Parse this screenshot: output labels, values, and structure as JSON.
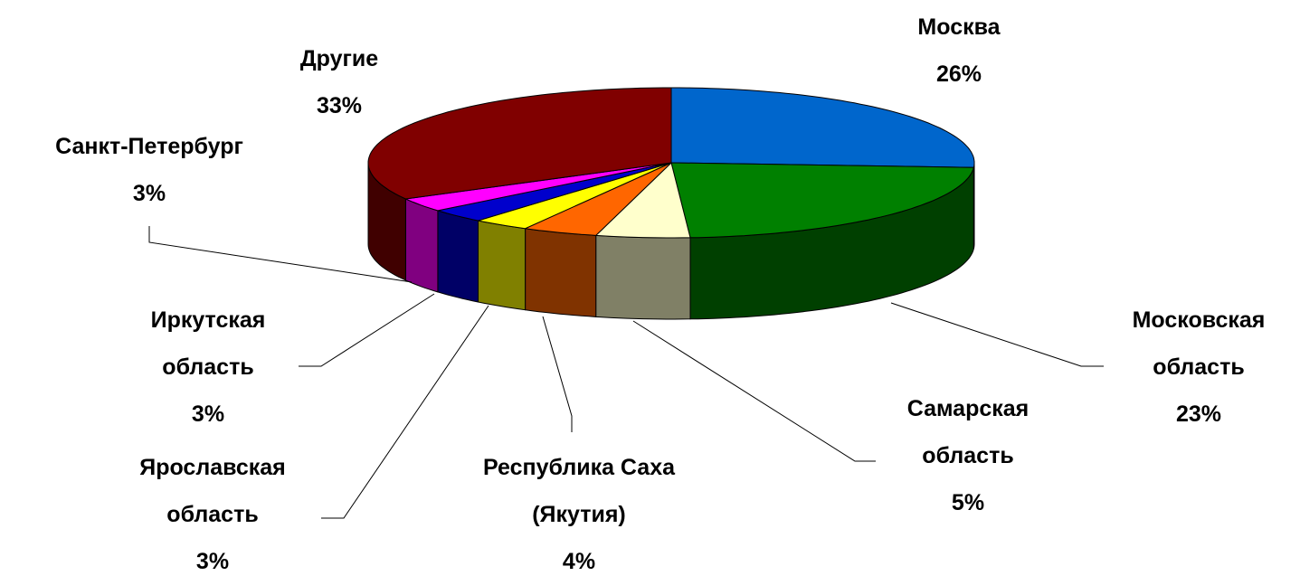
{
  "chart_data": {
    "type": "pie",
    "categories": [
      "Москва",
      "Московская область",
      "Самарская область",
      "Республика Саха (Якутия)",
      "Ярославская область",
      "Иркутская область",
      "Санкт-Петербург",
      "Другие"
    ],
    "values": [
      26,
      23,
      5,
      4,
      3,
      3,
      3,
      33
    ],
    "value_labels": [
      "26%",
      "23%",
      "5%",
      "4%",
      "3%",
      "3%",
      "3%",
      "33%"
    ],
    "colors": [
      "#0066cc",
      "#008000",
      "#ffffcc",
      "#ff6600",
      "#ffff00",
      "#0000cc",
      "#ff00ff",
      "#800000"
    ]
  }
}
